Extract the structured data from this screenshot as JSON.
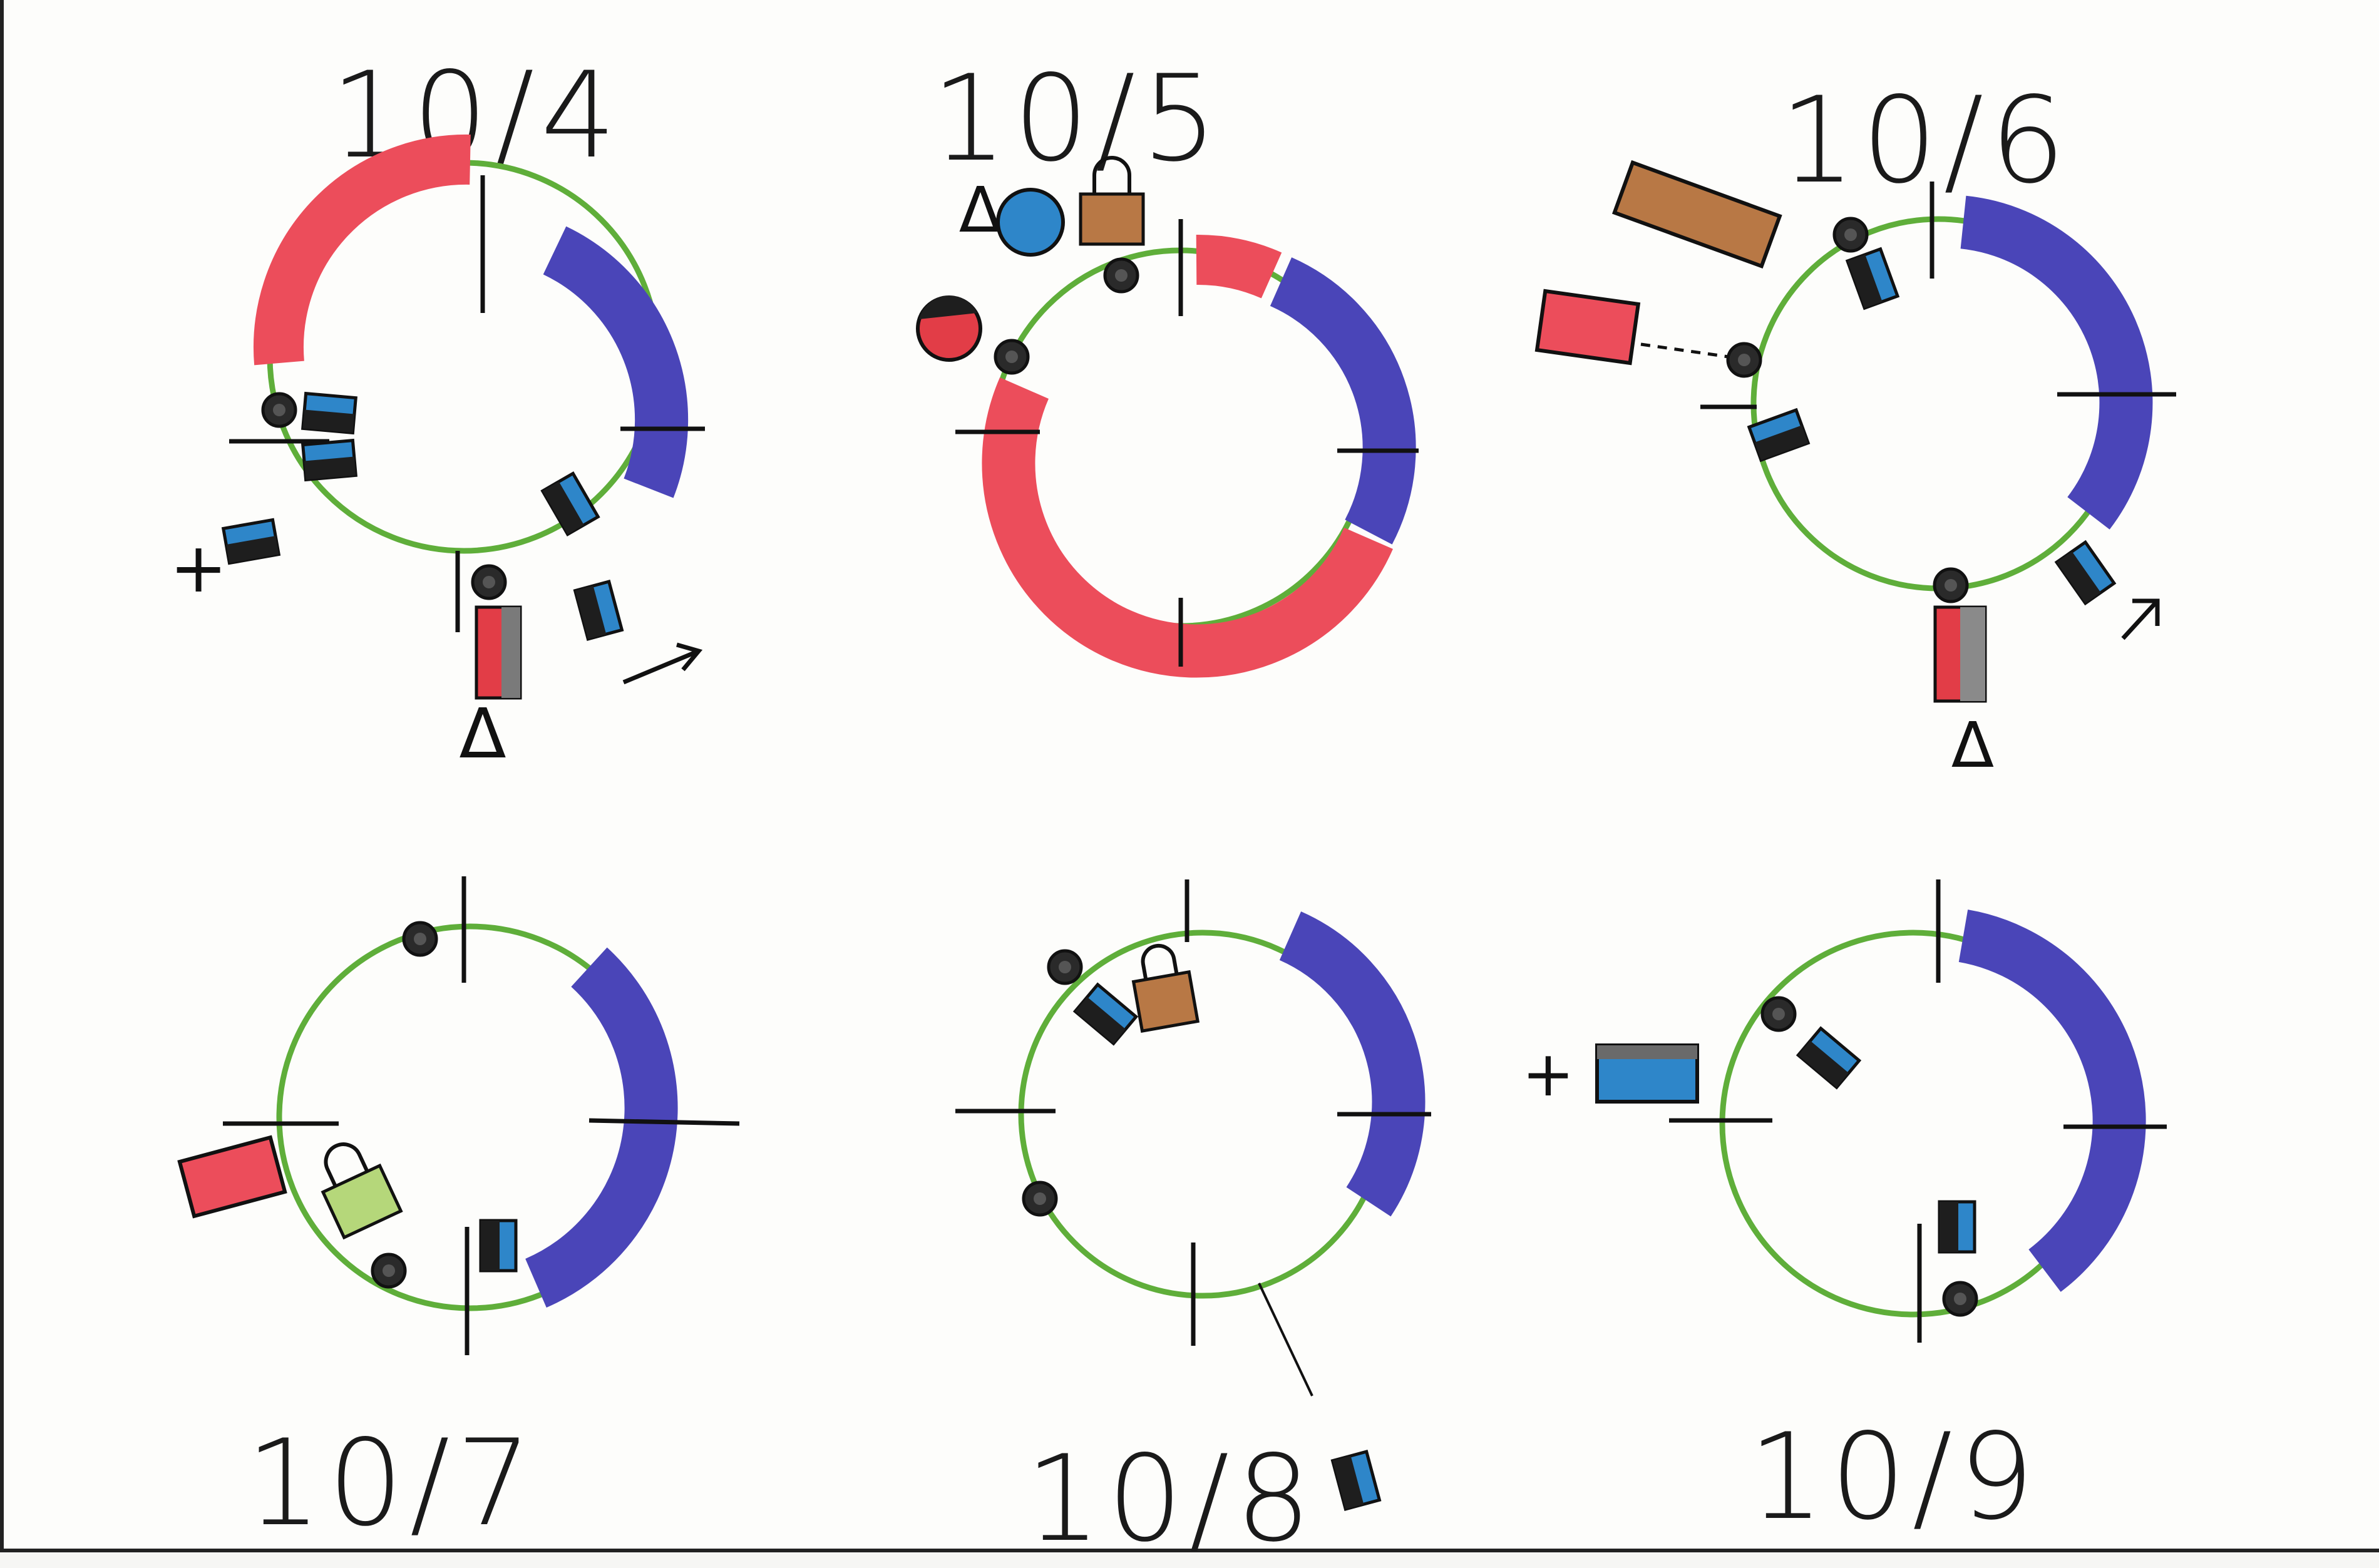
{
  "colors": {
    "ring": "#5fae3a",
    "red_arc": "#ec4d5b",
    "blue_arc": "#4a45b8",
    "cell_blue": "#2e86c9",
    "cell_dark": "#1e1e1e",
    "lock_brown": "#b87845",
    "lock_green": "#b5d77a",
    "ink": "#111111"
  },
  "panels": [
    {
      "date": "10/4"
    },
    {
      "date": "10/5"
    },
    {
      "date": "10/6"
    },
    {
      "date": "10/7"
    },
    {
      "date": "10/8"
    },
    {
      "date": "10/9"
    }
  ],
  "symbols": {
    "plus": "+",
    "delta": "Δ",
    "arrow": "→"
  }
}
